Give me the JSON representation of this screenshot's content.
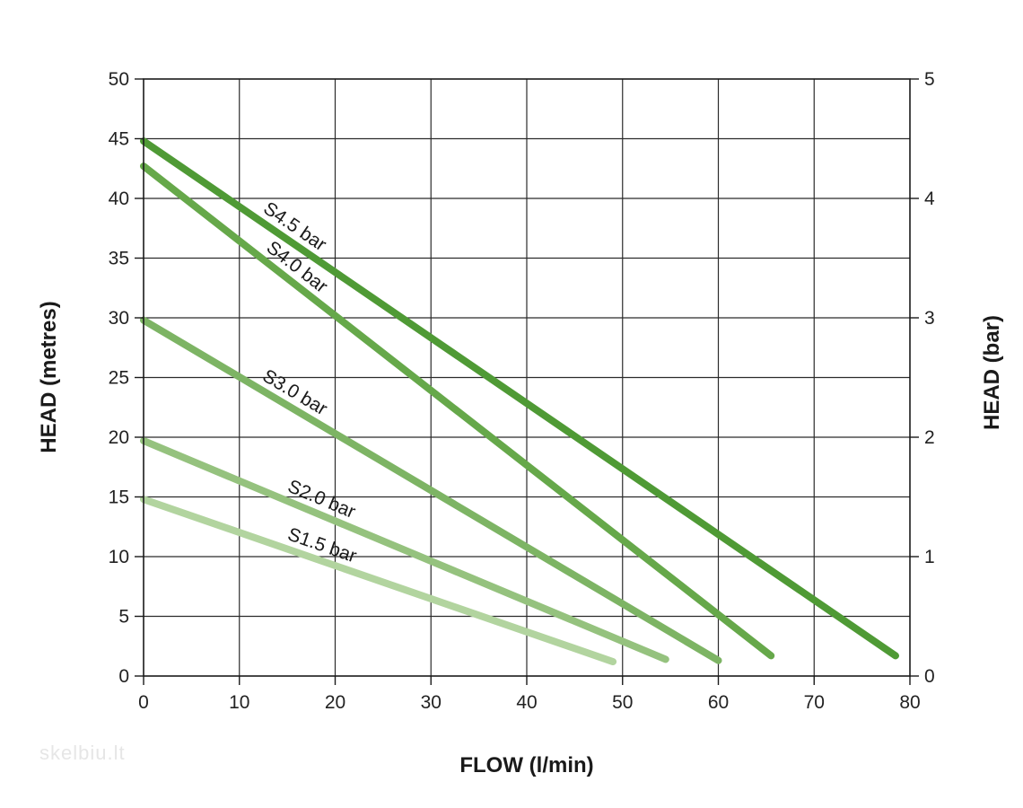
{
  "chart_data": {
    "type": "line",
    "title": "",
    "xlabel": "FLOW (l/min)",
    "ylabel": "HEAD (metres)",
    "y2label": "HEAD (bar)",
    "xlim": [
      0,
      80
    ],
    "ylim": [
      0,
      50
    ],
    "y2lim": [
      0,
      5
    ],
    "xticks": [
      0,
      10,
      20,
      30,
      40,
      50,
      60,
      70,
      80
    ],
    "yticks": [
      0,
      5,
      10,
      15,
      20,
      25,
      30,
      35,
      40,
      45,
      50
    ],
    "y2ticks": [
      0,
      1,
      2,
      3,
      4,
      5
    ],
    "grid": true,
    "series": [
      {
        "name": "S4.5 bar",
        "color": "#4f9a35",
        "x": [
          0,
          78.5
        ],
        "y": [
          44.8,
          1.7
        ]
      },
      {
        "name": "S4.0 bar",
        "color": "#66a84a",
        "x": [
          0,
          65.5
        ],
        "y": [
          42.7,
          1.7
        ]
      },
      {
        "name": "S3.0 bar",
        "color": "#7db464",
        "x": [
          0,
          60.0
        ],
        "y": [
          29.8,
          1.3
        ]
      },
      {
        "name": "S2.0 bar",
        "color": "#95c27e",
        "x": [
          0,
          54.5
        ],
        "y": [
          19.7,
          1.4
        ]
      },
      {
        "name": "S1.5 bar",
        "color": "#b2d49f",
        "x": [
          0,
          49.0
        ],
        "y": [
          14.8,
          1.2
        ]
      }
    ]
  },
  "watermark": "skelbiu.lt"
}
